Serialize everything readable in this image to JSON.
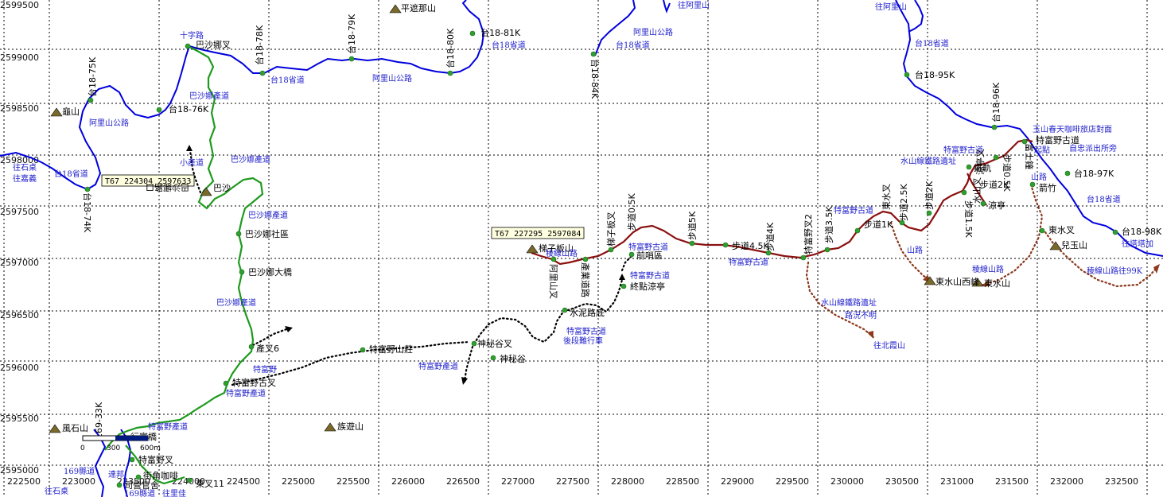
{
  "x_ticks": [
    "222500",
    "223000",
    "223500",
    "224000",
    "224500",
    "225000",
    "225500",
    "226000",
    "226500",
    "227000",
    "227500",
    "228000",
    "228500",
    "229000",
    "229500",
    "230000",
    "230500",
    "231000",
    "231500",
    "232000",
    "232500"
  ],
  "y_ticks": [
    "2599500",
    "2599000",
    "2598500",
    "2598000",
    "2597500",
    "2597000",
    "2596500",
    "2596000",
    "2595500",
    "2595000"
  ],
  "coord_boxes": {
    "a": "T67  224304 2597633",
    "b": "T67  227295 2597084"
  },
  "peaks": {
    "pingzhe": "平遮那山",
    "guishan": "龜山",
    "basha": "巴沙",
    "tizi": "梯子板山",
    "fengshi": "風石山",
    "zuyou": "族遊山",
    "dongshui_west": "東水山西峰",
    "dongshui": "東水山",
    "wangyu": "兒玉山"
  },
  "black_labels": {
    "t18_81k": "台18-81K",
    "t18_95k": "台18-95K",
    "t18_76k": "台18-76K",
    "t18_97k": "台18-97K",
    "t18_98k": "台18-98K",
    "bashanao_cha": "巴沙娜叉",
    "bashanao_sheq": "巴沙娜社區",
    "bashanao_bridge": "巴沙娜大橋",
    "chancha6": "產叉6",
    "tefuye_shanzhuang": "特富野山莊",
    "shenmi_cha": "神秘谷叉",
    "shenmi": "神秘谷",
    "tefuye_gu_cha": "特富野古叉",
    "shuini_bottom": "水泥路底",
    "zhongdian": "終點涼亭",
    "qianshao": "前哨區",
    "budao_45k": "步道4.5K",
    "budao_1k": "步道1K",
    "budao_2k": "步道2K",
    "liangting": "涼亭",
    "tiegui": "鐵軌",
    "tefuye_gudao": "特富野古道",
    "jianzhu": "箭竹",
    "dongshui_cha": "東水叉",
    "xingfu": "行富橋",
    "tefuye_cha": "特富野叉",
    "jiejiao": "街角咖啡",
    "sidang": "司營官舍",
    "dongcha": "東叉11"
  },
  "blue_labels": {
    "tai18_a": "台18省道",
    "tai18_b": "台18省道",
    "tai18_c": "台18省道",
    "tai18_d": "台18省道",
    "tai18_e": "台18省道",
    "tai18_f": "台18省道",
    "alishan_a": "阿里山公路",
    "alishan_b": "阿里山公路",
    "alishan_c": "阿里山公路",
    "wang_alishan_a": "往阿里山",
    "wang_alishan_b": "往阿里山",
    "shizilu": "十字路",
    "bashanao_chandao_a": "巴沙娜產道",
    "bashanao_chandao_b": "巴沙娜產道",
    "bashanao_chandao_c": "巴沙娜產道",
    "bashanao_chandao_d": "巴沙娜產道",
    "xiaochandao": "小產道",
    "tefuye": "特富野",
    "tefuye_chandao_a": "特富野產道",
    "tefuye_chandao_b": "特富野產道",
    "tefuye_chandao_c": "特富野產道",
    "tefuye_gudao_a": "特富野古道",
    "tefuye_gudao_b": "特富野古道",
    "tefuye_gudao_c": "特富野古道",
    "tefuye_gudao_d": "特富野古道",
    "houduan": "後段難行車",
    "lengxian_a": "稜線山路",
    "lengxian_b": "稜線山路",
    "lengxian_c": "稜線山路往99K",
    "shanlu": "山路",
    "shanlu2": "山路",
    "shuishan_a": "水山線鐵路遺址",
    "shuishan_b": "水山線鐵路遺址",
    "luzhuang": "路況不明",
    "wang_beixia": "往北霞山",
    "yushan_cafe": "玉山春天咖啡旅店對面",
    "qidian": "起點",
    "zizhong": "自忠派出所旁",
    "wang_tata": "往塔塔加",
    "wang_shishao": "往石桌",
    "wang_jiayi": "往嘉義",
    "wang_shizhuo2": "往石桌",
    "xian169_a": "169縣道",
    "xian169_b": "169縣道",
    "wang_lijia": "往里佳",
    "dadu": "達邦"
  },
  "vertical_labels": {
    "t18_75k": "台18-75K",
    "t18_78k": "台18-78K",
    "t18_79k": "台18-79K",
    "t18_80k": "台18-80K",
    "t18_84k": "台18-84K",
    "t18_74k": "台18-74K",
    "t18_96k": "台18-96K",
    "t169_33k": "169-33K",
    "t18_74k_b": "巴沙娜路口",
    "tizi_cha": "梯子板叉",
    "budao_05k": "步道0.5K",
    "budao_5k": "步道5K",
    "budao_4k": "步道4K",
    "tefuye_cha2": "特富野叉2",
    "budao_35k": "步道3.5K",
    "dongshui_mouth": "東水叉",
    "budao_25k": "步道2.5K",
    "budao_2k_v": "步道2K",
    "budao_15k": "步道1.5K",
    "budao_05k_b": "步道0.5K",
    "tuo_b": "阿里山叉",
    "tuo_c": "產業道路",
    "fuzhi": "富士鐘",
    "dong_b": "涼亭叉",
    "shuishan": "水山叉"
  },
  "scale": {
    "zero": "0",
    "mid": "300",
    "end": "600m",
    "unit": "公尺"
  },
  "colors": {
    "road": "#0000dd",
    "trail": "#1e9a1e",
    "gudao": "#8b1010",
    "label_blue": "#2222cc",
    "point": "#2fa02f"
  }
}
